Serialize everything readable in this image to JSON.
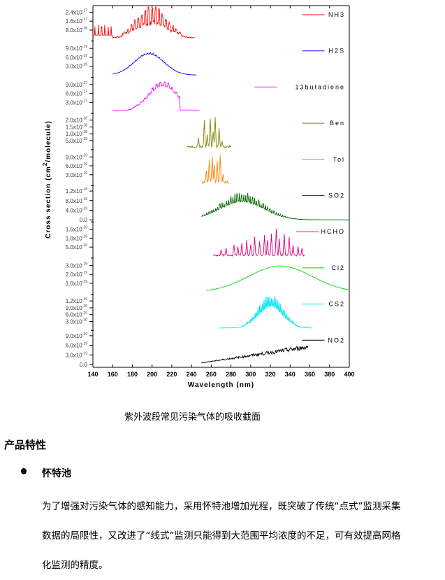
{
  "chart_data": {
    "type": "line",
    "xlabel": "Wavelength (nm)",
    "ylabel": "Cross section (cm2/molecule)",
    "ylabel_parts": [
      "Cross section (cm",
      "2",
      "/molecule)"
    ],
    "xlim": [
      140,
      400
    ],
    "xticks": [
      "140",
      "160",
      "180",
      "200",
      "220",
      "240",
      "260",
      "280",
      "300",
      "320",
      "340",
      "360",
      "380",
      "400"
    ],
    "panels": [
      {
        "name": "NH3",
        "color": "#ff0000",
        "yticks": [
          {
            "m": "2.4x10",
            "e": "-17"
          },
          {
            "m": "1.6x10",
            "e": "-17"
          },
          {
            "m": "8.0x10",
            "e": "-18"
          }
        ],
        "ymax": 3e-17,
        "curve": {
          "range": [
            140,
            243
          ],
          "center": 200,
          "width": 14,
          "peak": 0.6,
          "base": 0.15,
          "ripple": 0.9,
          "period": 3.5,
          "edge_spikes": true
        }
      },
      {
        "name": "H2S",
        "color": "#0000ff",
        "yticks": [
          {
            "m": "9.0x10",
            "e": "-19"
          },
          {
            "m": "6.0x10",
            "e": "-19"
          },
          {
            "m": "3.0x10",
            "e": "-19"
          }
        ],
        "ymax": 1.1e-18,
        "curve": {
          "range": [
            160,
            245
          ],
          "center": 197,
          "width": 15,
          "peak": 0.68,
          "base": 0.0,
          "ripple": 0.05,
          "period": 3
        }
      },
      {
        "name": "13butadiene",
        "color": "#ff00ff",
        "yticks": [
          {
            "m": "9.0x10",
            "e": "-17"
          },
          {
            "m": "6.0x10",
            "e": "-17"
          },
          {
            "m": "3.0x10",
            "e": "-17"
          }
        ],
        "ymax": 1.1e-16,
        "curve": {
          "range": [
            160,
            248
          ],
          "center": 211,
          "width": 14,
          "peak": 0.82,
          "base": 0.05,
          "ripple": 0.15,
          "period": 4,
          "cutoff": 228
        }
      },
      {
        "name": "Ben",
        "color": "#808000",
        "yticks": [
          {
            "m": "2.0x10",
            "e": "-18"
          },
          {
            "m": "1.5x10",
            "e": "-18"
          },
          {
            "m": "1.0x10",
            "e": "-18"
          },
          {
            "m": "5.0x10",
            "e": "-19"
          }
        ],
        "ymax": 2.1e-18,
        "curve": {
          "range": [
            235,
            280
          ],
          "spikes": [
            [
              247,
              0.3
            ],
            [
              253,
              0.85
            ],
            [
              256,
              0.4
            ],
            [
              259,
              0.9
            ],
            [
              262,
              0.5
            ],
            [
              264,
              0.95
            ],
            [
              268,
              0.6
            ],
            [
              271,
              0.2
            ]
          ],
          "base": 0.05
        }
      },
      {
        "name": "Tol",
        "color": "#ff8000",
        "yticks": [
          {
            "m": "9.0x10",
            "e": "-19"
          },
          {
            "m": "6.0x10",
            "e": "-19"
          },
          {
            "m": "3.0x10",
            "e": "-19"
          }
        ],
        "ymax": 1.1e-18,
        "curve": {
          "range": [
            251,
            278
          ],
          "spikes": [
            [
              255,
              0.4
            ],
            [
              258,
              0.75
            ],
            [
              261,
              0.85
            ],
            [
              263,
              0.6
            ],
            [
              266,
              0.7
            ],
            [
              269,
              0.9
            ],
            [
              272,
              0.3
            ]
          ],
          "base": 0.1
        }
      },
      {
        "name": "SO2",
        "color": "#006400",
        "yticks": [
          {
            "m": "1.2x10",
            "e": "-18"
          },
          {
            "m": "8.0x10",
            "e": "-19"
          },
          {
            "m": "4.0x10",
            "e": "-19"
          },
          {
            "m": "0.0",
            "e": ""
          }
        ],
        "ymax": 1.3e-18,
        "curve": {
          "range": [
            250,
            400
          ],
          "center": 291,
          "width": 22,
          "peak": 0.68,
          "base": 0.0,
          "ripple": 0.35,
          "period": 2.2
        }
      },
      {
        "name": "HCHO",
        "color": "#e0007a",
        "yticks": [
          {
            "m": "1.5x10",
            "e": "-19"
          },
          {
            "m": "1.0x10",
            "e": "-19"
          },
          {
            "m": "5.0x10",
            "e": "-20"
          }
        ],
        "ymax": 1.7e-19,
        "curve": {
          "range": [
            262,
            355
          ],
          "spikes": [
            [
              270,
              0.2
            ],
            [
              275,
              0.25
            ],
            [
              283,
              0.35
            ],
            [
              287,
              0.3
            ],
            [
              291,
              0.4
            ],
            [
              296,
              0.5
            ],
            [
              300,
              0.35
            ],
            [
              304,
              0.6
            ],
            [
              309,
              0.45
            ],
            [
              314,
              0.65
            ],
            [
              317,
              0.5
            ],
            [
              321,
              0.7
            ],
            [
              326,
              0.85
            ],
            [
              329,
              0.55
            ],
            [
              334,
              0.7
            ],
            [
              339,
              0.6
            ],
            [
              343,
              0.35
            ],
            [
              348,
              0.3
            ],
            [
              352,
              0.25
            ]
          ],
          "base": 0.05
        }
      },
      {
        "name": "Cl2",
        "color": "#00dd00",
        "yticks": [
          {
            "m": "3.0x10",
            "e": "-19"
          },
          {
            "m": "2.0x10",
            "e": "-19"
          },
          {
            "m": "1.0x10",
            "e": "-19"
          }
        ],
        "ymax": 3.2e-19,
        "curve": {
          "range": [
            255,
            400
          ],
          "center": 330,
          "width": 32,
          "peak": 0.82,
          "base": 0.0,
          "ripple": 0,
          "period": 3
        }
      },
      {
        "name": "CS2",
        "color": "#00e5ee",
        "yticks": [
          {
            "m": "1.2x10",
            "e": "-19"
          },
          {
            "m": "9.0x10",
            "e": "-20"
          },
          {
            "m": "6.0x10",
            "e": "-20"
          },
          {
            "m": "3.0x10",
            "e": "-20"
          }
        ],
        "ymax": 1.3e-19,
        "curve": {
          "range": [
            268,
            362
          ],
          "center": 320,
          "width": 12,
          "peak": 0.8,
          "base": 0.05,
          "ripple": 0.45,
          "period": 1.5
        }
      },
      {
        "name": "NO2",
        "color": "#000000",
        "yticks": [
          {
            "m": "9.0x10",
            "e": "-19"
          },
          {
            "m": "6.0x10",
            "e": "-19"
          },
          {
            "m": "3.0x10",
            "e": "-19"
          },
          {
            "m": "0.0",
            "e": ""
          }
        ],
        "ymax": 1e-18,
        "curve": {
          "range": [
            250,
            358
          ],
          "linear": [
            0.05,
            0.55
          ],
          "ripple": 0.15,
          "period": 1.5
        }
      }
    ]
  },
  "caption": "紫外波段常见污染气体的吸收截面",
  "section_title": "产品特性",
  "feature": {
    "title": "怀特池",
    "lines": [
      "为了增强对污染气体的感知能力，采用怀特池增加光程，既突破了传统“点式”监测采集",
      "数据的局限性，又改进了“线式”监测只能得到大范围平均浓度的不足，可有效提高网格",
      "化监测的精度。"
    ]
  }
}
